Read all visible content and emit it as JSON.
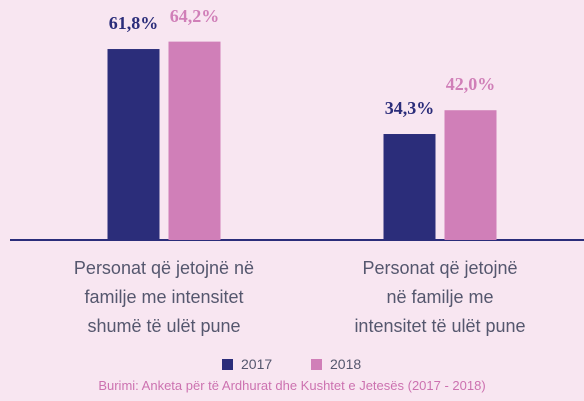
{
  "chart_data": {
    "type": "bar",
    "categories": [
      "Personat që jetojnë në\nfamilje me intensitet\nshumë të ulët pune",
      "Personat që jetojnë\nnë familje me\nintensitet të ulët pune"
    ],
    "series": [
      {
        "name": "2017",
        "color": "#2b2d7a",
        "values": [
          61.8,
          34.3
        ],
        "value_labels": [
          "61,8%",
          "34,3%"
        ]
      },
      {
        "name": "2018",
        "color": "#d07fb8",
        "values": [
          64.2,
          42.0
        ],
        "value_labels": [
          "64,2%",
          "42,0%"
        ]
      }
    ],
    "source": "Burimi: Anketa për të Ardhurat dhe Kushtet e Jetesës (2017 - 2018)"
  }
}
